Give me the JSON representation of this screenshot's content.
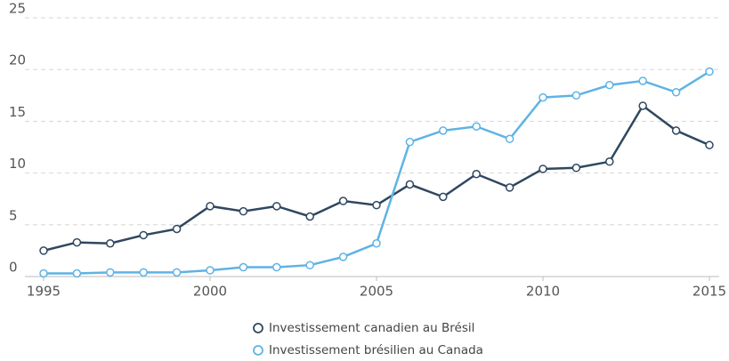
{
  "chart_data": {
    "type": "line",
    "x": [
      1995,
      1996,
      1997,
      1998,
      1999,
      2000,
      2001,
      2002,
      2003,
      2004,
      2005,
      2006,
      2007,
      2008,
      2009,
      2010,
      2011,
      2012,
      2013,
      2014,
      2015
    ],
    "series": [
      {
        "name": "Investissement canadien au Brésil",
        "color": "#2f4760",
        "values": [
          2.5,
          3.3,
          3.2,
          4.0,
          4.6,
          6.8,
          6.3,
          6.8,
          5.8,
          7.3,
          6.9,
          8.9,
          7.7,
          9.9,
          8.6,
          10.4,
          10.5,
          11.1,
          16.5,
          14.1,
          12.7
        ]
      },
      {
        "name": "Investissement brésilien au Canada",
        "color": "#5fb3e4",
        "values": [
          0.3,
          0.3,
          0.4,
          0.4,
          0.4,
          0.6,
          0.9,
          0.9,
          1.1,
          1.9,
          3.2,
          13.0,
          14.1,
          14.5,
          13.3,
          17.3,
          17.5,
          18.5,
          18.9,
          17.8,
          19.8
        ]
      }
    ],
    "xlim": [
      1995,
      2015
    ],
    "xticks": [
      1995,
      2000,
      2005,
      2010,
      2015
    ],
    "ylim": [
      0,
      25
    ],
    "yticks": [
      0,
      5,
      10,
      15,
      20,
      25
    ],
    "grid": true,
    "legend": "bottom"
  }
}
